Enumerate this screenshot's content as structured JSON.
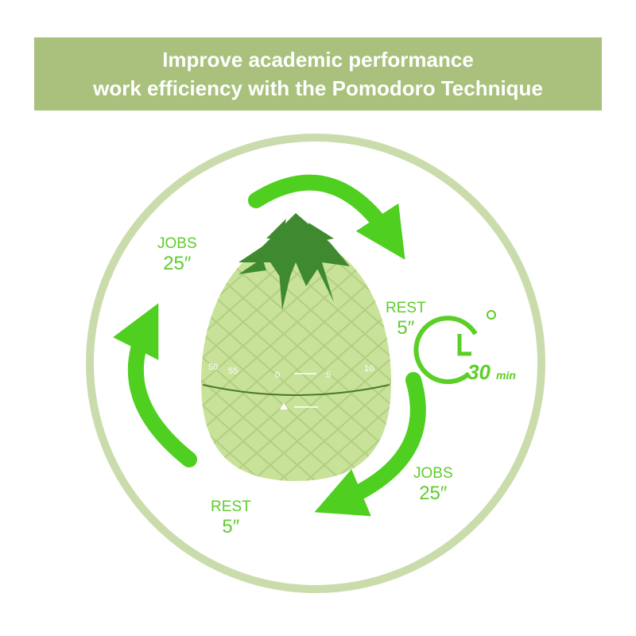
{
  "banner": {
    "line1": "Improve academic performance",
    "line2": "work efficiency with the Pomodoro Technique"
  },
  "labels": [
    {
      "word": "JOBS",
      "value": "25″"
    },
    {
      "word": "REST",
      "value": "5″"
    },
    {
      "word": "JOBS",
      "value": "25″"
    },
    {
      "word": "REST",
      "value": "5″"
    }
  ],
  "clock_badge": {
    "number": "30",
    "unit": "min",
    "icon": "clock-icon"
  },
  "dial": {
    "ticks": [
      "50",
      "55",
      "0",
      "5",
      "10"
    ]
  },
  "colors": {
    "banner": "#a9c17c",
    "arrow": "#4fcf1f",
    "ring": "#cbdcac",
    "body": "#c8e29a",
    "leaves": "#3f8a2e"
  }
}
